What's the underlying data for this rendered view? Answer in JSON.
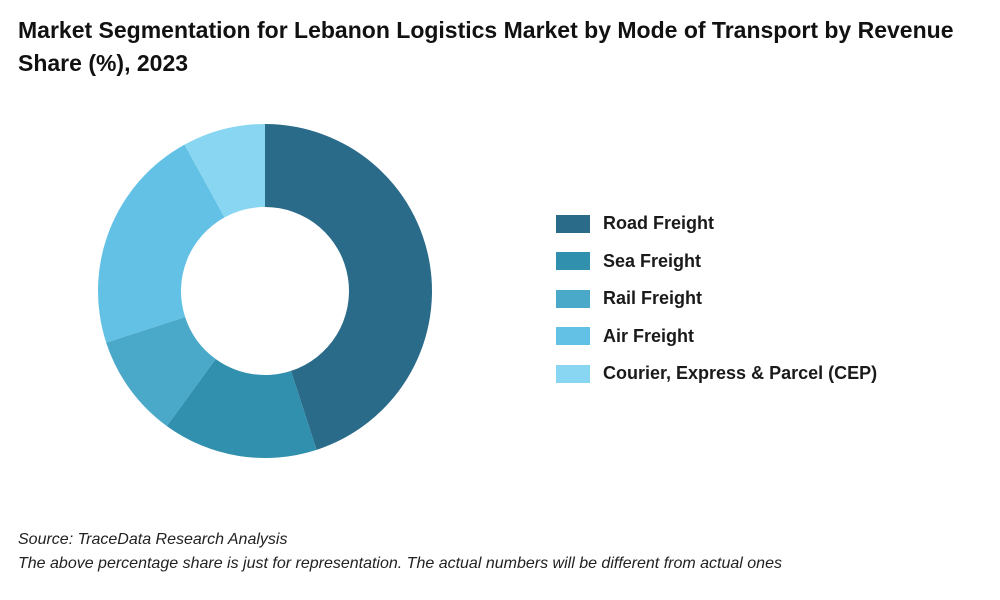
{
  "title": "Market Segmentation for Lebanon Logistics Market by Mode of Transport by Revenue Share (%), 2023",
  "chart_data": {
    "type": "pie",
    "title": "Market Segmentation for Lebanon Logistics Market by Mode of Transport by Revenue Share (%), 2023",
    "donut": true,
    "categories": [
      "Road Freight",
      "Sea Freight",
      "Rail Freight",
      "Air Freight",
      "Courier, Express & Parcel (CEP)"
    ],
    "values": [
      45,
      15,
      10,
      22,
      8
    ],
    "colors": [
      "#2b6b8a",
      "#3090ad",
      "#4aa8c9",
      "#62c1e5",
      "#88d6f1"
    ],
    "legend_position": "right"
  },
  "legend": {
    "items": [
      {
        "label": "Road Freight",
        "color": "#2b6b8a"
      },
      {
        "label": "Sea Freight",
        "color": "#3090ad"
      },
      {
        "label": "Rail Freight",
        "color": "#4aa8c9"
      },
      {
        "label": "Air Freight",
        "color": "#62c1e5"
      },
      {
        "label": "Courier, Express & Parcel (CEP)",
        "color": "#88d6f1"
      }
    ]
  },
  "footer": {
    "source": "Source: TraceData Research Analysis",
    "note": "The above percentage share is just for representation. The actual numbers will be different from actual ones"
  }
}
